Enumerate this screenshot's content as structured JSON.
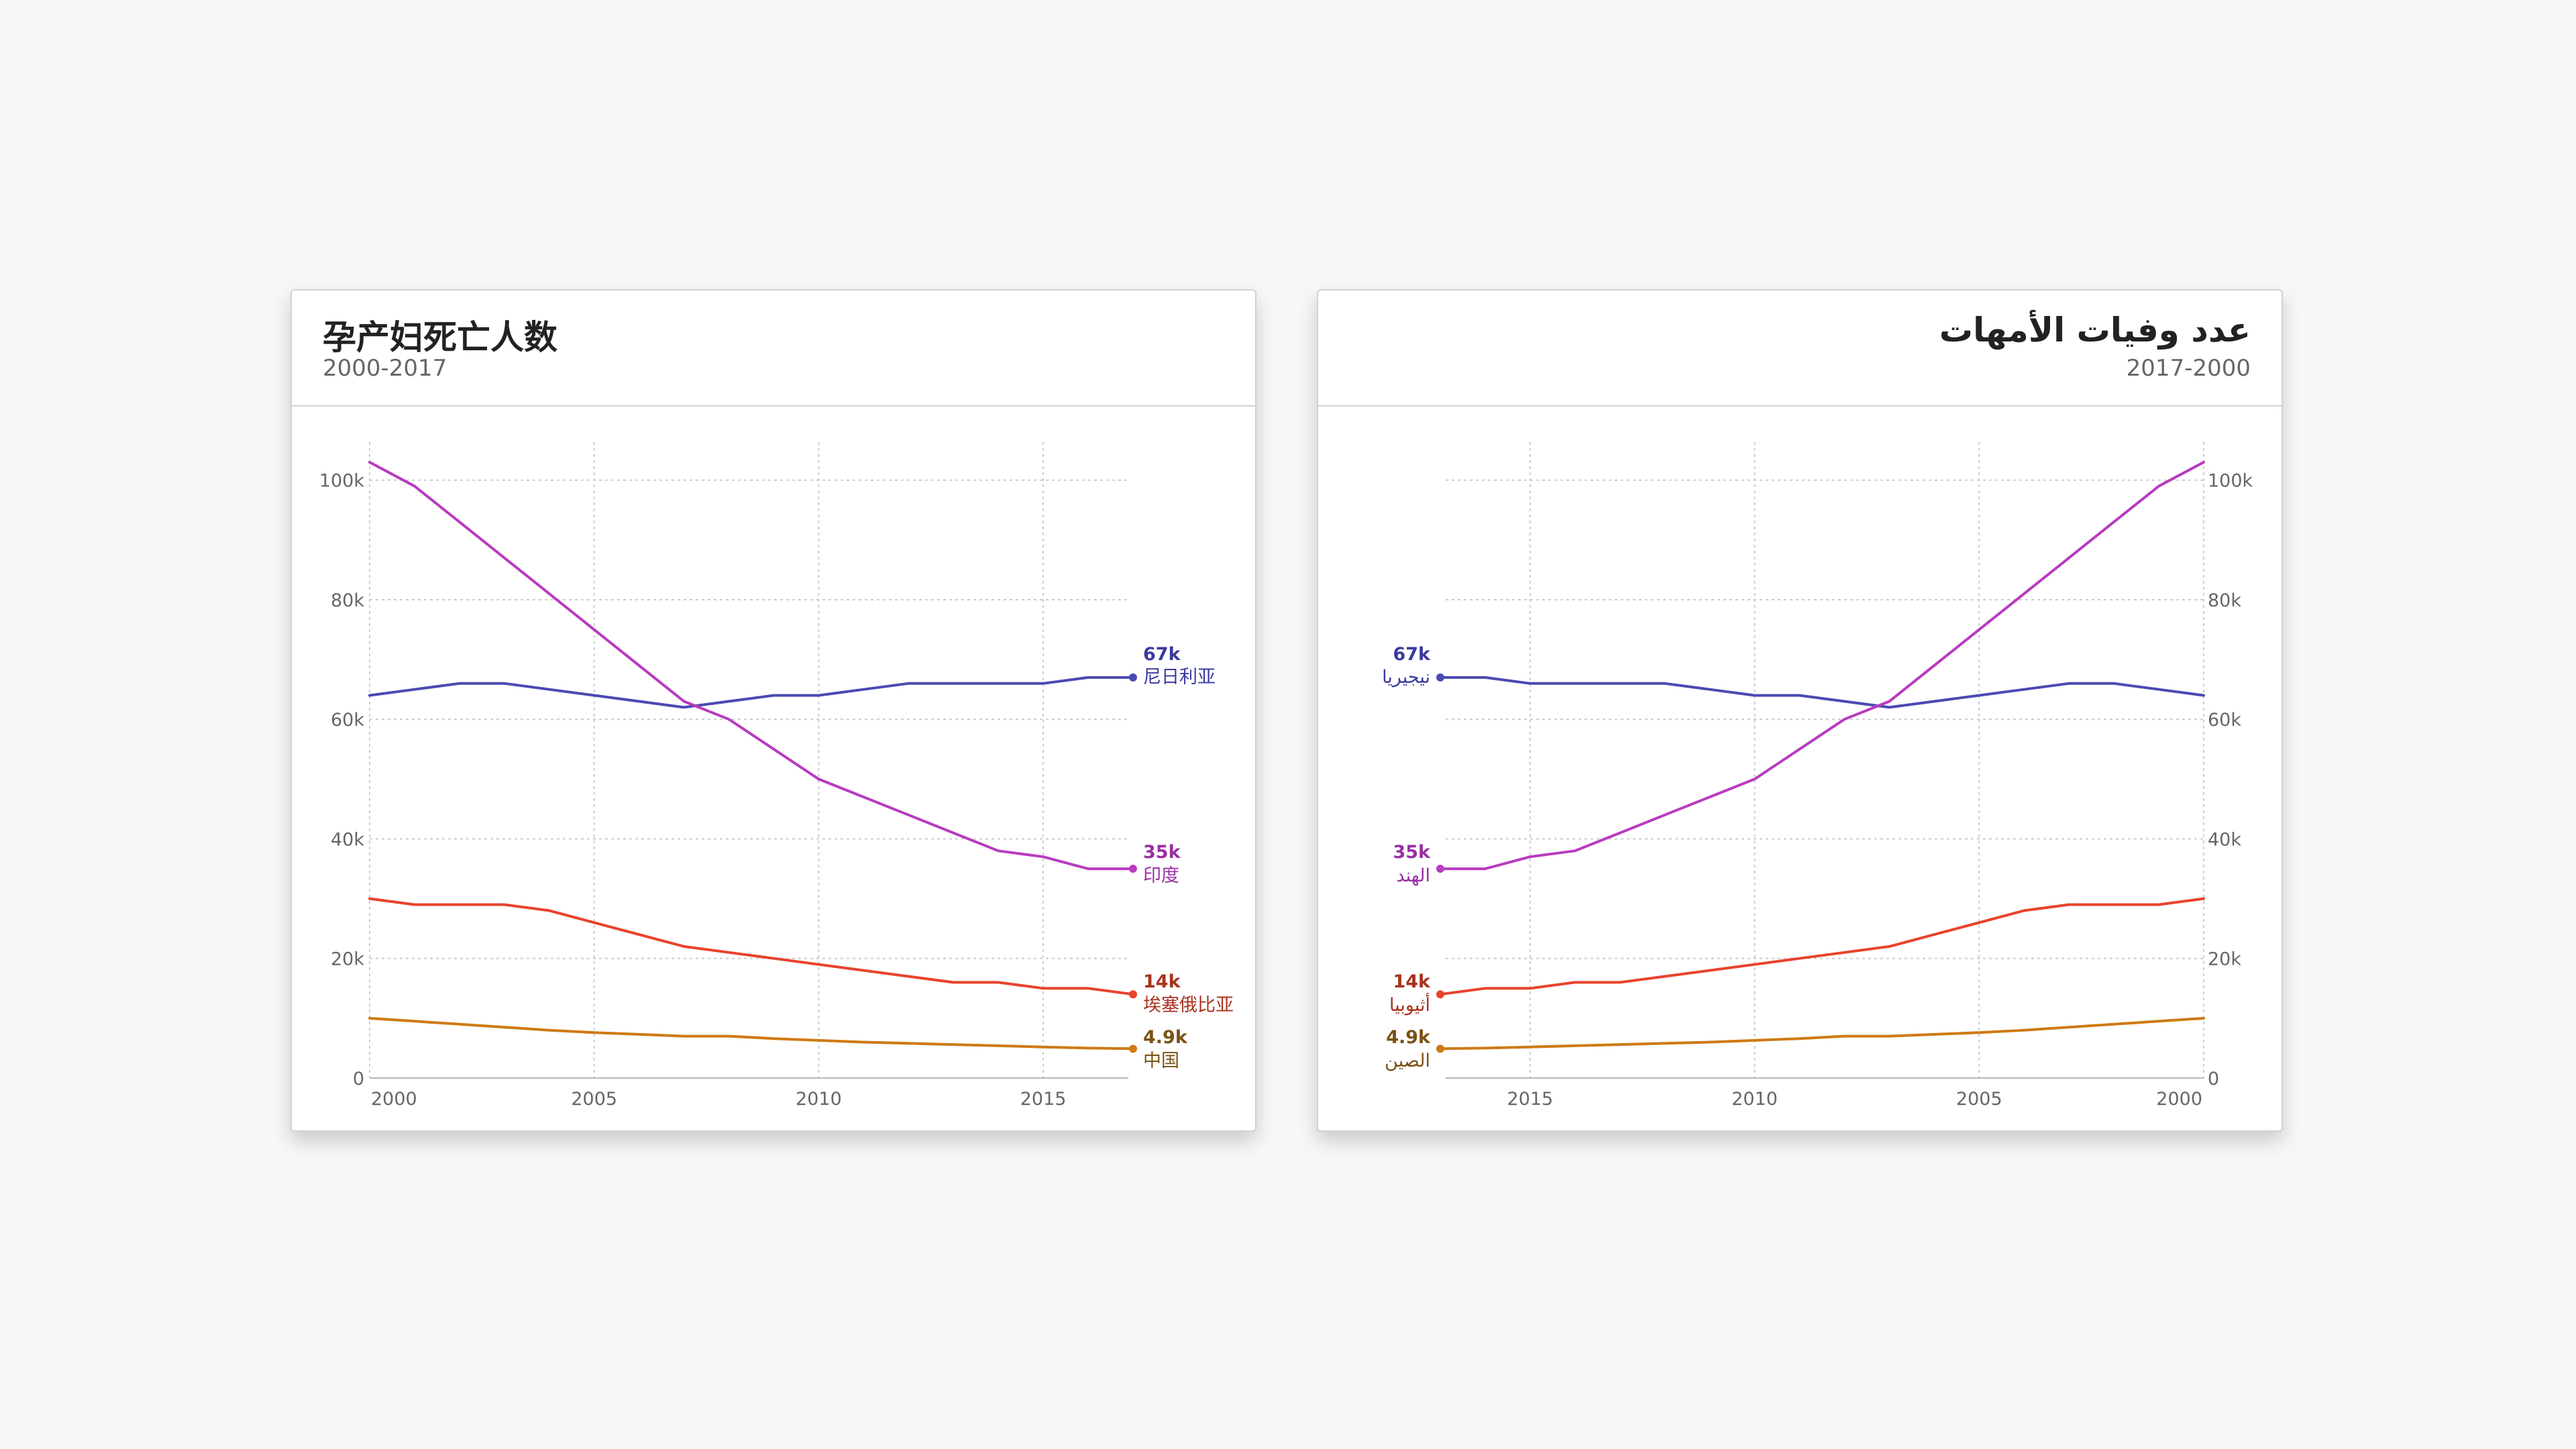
{
  "charts": [
    {
      "id": "zh",
      "title": "孕产妇死亡人数",
      "subtitle": "2000-2017",
      "x_ticks": [
        2000,
        2005,
        2010,
        2015
      ],
      "y_ticks": [
        "0",
        "20k",
        "40k",
        "60k",
        "80k",
        "100k"
      ],
      "end_labels": [
        {
          "value": "67k",
          "name": "尼日利亚"
        },
        {
          "value": "35k",
          "name": "印度"
        },
        {
          "value": "14k",
          "name": "埃塞俄比亚"
        },
        {
          "value": "4.9k",
          "name": "中国"
        }
      ]
    },
    {
      "id": "ar",
      "title": "عدد وفيات الأمهات",
      "subtitle": "2017-2000",
      "x_ticks": [
        2015,
        2010,
        2005,
        2000
      ],
      "y_ticks": [
        "0",
        "20k",
        "40k",
        "60k",
        "80k",
        "100k"
      ],
      "end_labels": [
        {
          "value": "67k",
          "name": "نيجيريا"
        },
        {
          "value": "35k",
          "name": "الهند"
        },
        {
          "value": "14k",
          "name": "أثيوبيا"
        },
        {
          "value": "4.9k",
          "name": "الصين"
        }
      ]
    }
  ],
  "chart_data": [
    {
      "type": "line",
      "title": "孕产妇死亡人数",
      "subtitle": "2000-2017",
      "x": [
        2000,
        2001,
        2002,
        2003,
        2004,
        2005,
        2006,
        2007,
        2008,
        2009,
        2010,
        2011,
        2012,
        2013,
        2014,
        2015,
        2016,
        2017
      ],
      "xlim": [
        2000,
        2017
      ],
      "ylim": [
        0,
        103000
      ],
      "x_direction": "ascending",
      "y_axis_side": "left",
      "grid": true,
      "series": [
        {
          "name": "尼日利亚",
          "color": "#4a4ab3",
          "values": [
            64000,
            65000,
            66000,
            66000,
            65000,
            64000,
            63000,
            62000,
            63000,
            64000,
            64000,
            65000,
            66000,
            66000,
            66000,
            66000,
            67000,
            67000
          ]
        },
        {
          "name": "印度",
          "color": "#b83bbf",
          "values": [
            103000,
            99000,
            93000,
            87000,
            81000,
            75000,
            69000,
            63000,
            60000,
            55000,
            50000,
            47000,
            44000,
            41000,
            38000,
            37000,
            35000,
            35000
          ]
        },
        {
          "name": "埃塞俄比亚",
          "color": "#e8432c",
          "values": [
            30000,
            29000,
            29000,
            29000,
            28000,
            26000,
            24000,
            22000,
            21000,
            20000,
            19000,
            18000,
            17000,
            16000,
            16000,
            15000,
            15000,
            14000
          ]
        },
        {
          "name": "中国",
          "color": "#cf7a14",
          "values": [
            10000,
            9500,
            9000,
            8500,
            8000,
            7600,
            7300,
            7000,
            7000,
            6600,
            6300,
            6000,
            5800,
            5600,
            5400,
            5200,
            5000,
            4900
          ]
        }
      ]
    },
    {
      "type": "line",
      "title": "عدد وفيات الأمهات",
      "subtitle": "2017-2000",
      "x": [
        2000,
        2001,
        2002,
        2003,
        2004,
        2005,
        2006,
        2007,
        2008,
        2009,
        2010,
        2011,
        2012,
        2013,
        2014,
        2015,
        2016,
        2017
      ],
      "xlim": [
        2017,
        2000
      ],
      "ylim": [
        0,
        103000
      ],
      "x_direction": "descending",
      "y_axis_side": "right",
      "grid": true,
      "series": [
        {
          "name": "نيجيريا",
          "color": "#4a4ab3",
          "values": [
            64000,
            65000,
            66000,
            66000,
            65000,
            64000,
            63000,
            62000,
            63000,
            64000,
            64000,
            65000,
            66000,
            66000,
            66000,
            66000,
            67000,
            67000
          ]
        },
        {
          "name": "الهند",
          "color": "#b83bbf",
          "values": [
            103000,
            99000,
            93000,
            87000,
            81000,
            75000,
            69000,
            63000,
            60000,
            55000,
            50000,
            47000,
            44000,
            41000,
            38000,
            37000,
            35000,
            35000
          ]
        },
        {
          "name": "أثيوبيا",
          "color": "#e8432c",
          "values": [
            30000,
            29000,
            29000,
            29000,
            28000,
            26000,
            24000,
            22000,
            21000,
            20000,
            19000,
            18000,
            17000,
            16000,
            16000,
            15000,
            15000,
            14000
          ]
        },
        {
          "name": "الصين",
          "color": "#cf7a14",
          "values": [
            10000,
            9500,
            9000,
            8500,
            8000,
            7600,
            7300,
            7000,
            7000,
            6600,
            6300,
            6000,
            5800,
            5600,
            5400,
            5200,
            5000,
            4900
          ]
        }
      ]
    }
  ],
  "colors": {
    "grid": "#c8ccd0",
    "axis": "#b4b8bc",
    "tick_text": "#666666",
    "label_dark": {
      "nigeria": "#3a3aa0",
      "india": "#9b2fa3",
      "ethiopia": "#a8321f",
      "china": "#7a5214"
    }
  }
}
